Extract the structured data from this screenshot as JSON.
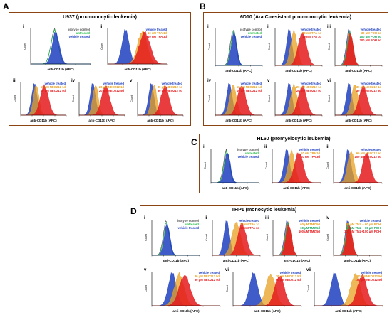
{
  "colors": {
    "box_border": "#8b4513",
    "isotype": "#555555",
    "untreated": "#22bb44",
    "vehicle": "#1f3fbf",
    "treat1": "#e8a020",
    "treat2": "#e41a1c",
    "treat3": "#1aa860"
  },
  "panels": {
    "A": {
      "letter": "A",
      "title": "U937 (pro-monocytic leukemia)",
      "plots": [
        {
          "roman": "i",
          "legend": [
            "isotype control",
            "untreated",
            "vehicle treated"
          ],
          "legend_colors": [
            "isotype",
            "untreated",
            "vehicle"
          ],
          "hists": [
            [
              "isotype",
              40,
              6
            ],
            [
              "untreated",
              40,
              6
            ],
            [
              "vehicle",
              42,
              6
            ]
          ],
          "xlabel": "anti-CD11b (APC)"
        },
        {
          "roman": "ii",
          "legend": [
            "vehicle treated",
            "10 nM TPA 1d",
            "10 nM TPA 3d"
          ],
          "legend_colors": [
            "vehicle",
            "treat1",
            "treat2"
          ],
          "hists": [
            [
              "vehicle",
              30,
              6
            ],
            [
              "treat1",
              58,
              8
            ],
            [
              "treat2",
              62,
              9
            ]
          ],
          "xlabel": "anti-CD11b (APC)"
        },
        {
          "roman": "iii",
          "legend": [
            "vehicle treated",
            "10 μM NEO212 1d",
            "10 μM NEO212 5d"
          ],
          "legend_colors": [
            "vehicle",
            "treat1",
            "treat2"
          ],
          "hists": [
            [
              "vehicle",
              30,
              6
            ],
            [
              "treat1",
              34,
              6
            ],
            [
              "treat2",
              52,
              9
            ]
          ],
          "xlabel": "anti-CD11b (APC)"
        },
        {
          "roman": "iv",
          "legend": [
            "vehicle treated",
            "20 μM NEO212 1d",
            "20 μM NEO212 5d"
          ],
          "legend_colors": [
            "vehicle",
            "treat1",
            "treat2"
          ],
          "hists": [
            [
              "vehicle",
              30,
              6
            ],
            [
              "treat1",
              36,
              6
            ],
            [
              "treat2",
              58,
              9
            ]
          ],
          "xlabel": "anti-CD11b (APC)"
        },
        {
          "roman": "v",
          "legend": [
            "vehicle treated",
            "30 μM NEO212 1d",
            "30 μM NEO212 5d"
          ],
          "legend_colors": [
            "vehicle",
            "treat1",
            "treat2"
          ],
          "hists": [
            [
              "vehicle",
              30,
              6
            ],
            [
              "treat1",
              36,
              6
            ],
            [
              "treat2",
              60,
              9
            ]
          ],
          "xlabel": "anti-CD11b (APC)"
        }
      ]
    },
    "B": {
      "letter": "B",
      "title": "6D10 (Ara C-resistant pro-monocytic leukemia)",
      "plots": [
        {
          "roman": "i",
          "legend": [
            "isotype control",
            "untreated",
            "vehicle treated"
          ],
          "legend_colors": [
            "isotype",
            "untreated",
            "vehicle"
          ],
          "hists": [
            [
              "isotype",
              38,
              6
            ],
            [
              "untreated",
              39,
              6
            ],
            [
              "vehicle",
              40,
              6
            ]
          ],
          "xlabel": "anti-CD11b (APC)"
        },
        {
          "roman": "ii",
          "legend": [
            "vehicle treated",
            "10 nM TPA 1d",
            "10 nM TPA 3d"
          ],
          "legend_colors": [
            "vehicle",
            "treat1",
            "treat2"
          ],
          "hists": [
            [
              "vehicle",
              30,
              6
            ],
            [
              "treat1",
              40,
              7
            ],
            [
              "treat2",
              58,
              9
            ]
          ],
          "xlabel": "anti-CD11b (APC)"
        },
        {
          "roman": "iii",
          "legend": [
            "vehicle treated",
            "30 μM POH 5d",
            "100 μM POH 5d",
            "300 μM POH 5d"
          ],
          "legend_colors": [
            "vehicle",
            "treat1",
            "treat3",
            "treat2"
          ],
          "hists": [
            [
              "vehicle",
              30,
              6
            ],
            [
              "treat1",
              31,
              6
            ],
            [
              "treat3",
              32,
              6
            ],
            [
              "treat2",
              33,
              6
            ]
          ],
          "xlabel": "anti-CD11b (APC)"
        },
        {
          "roman": "iv",
          "legend": [
            "vehicle treated",
            "10 μM NEO212 1d",
            "10 μM NEO212 5d"
          ],
          "legend_colors": [
            "vehicle",
            "treat1",
            "treat2"
          ],
          "hists": [
            [
              "vehicle",
              30,
              6
            ],
            [
              "treat1",
              38,
              7
            ],
            [
              "treat2",
              56,
              9
            ]
          ],
          "xlabel": "anti-CD11b (APC)"
        },
        {
          "roman": "v",
          "legend": [
            "vehicle treated",
            "20 μM NEO212 1d",
            "20 μM NEO212 5d"
          ],
          "legend_colors": [
            "vehicle",
            "treat1",
            "treat2"
          ],
          "hists": [
            [
              "vehicle",
              30,
              6
            ],
            [
              "treat1",
              40,
              7
            ],
            [
              "treat2",
              58,
              9
            ]
          ],
          "xlabel": "anti-CD11b (APC)"
        },
        {
          "roman": "vi",
          "legend": [
            "vehicle treated",
            "30 μM NEO212 1d",
            "30 μM NEO212 5d"
          ],
          "legend_colors": [
            "vehicle",
            "treat1",
            "treat2"
          ],
          "hists": [
            [
              "vehicle",
              30,
              6
            ],
            [
              "treat1",
              42,
              7
            ],
            [
              "treat2",
              60,
              9
            ]
          ],
          "xlabel": "anti-CD11b (APC)"
        }
      ]
    },
    "C": {
      "letter": "C",
      "title": "HL60 (promyelocytic leukemia)",
      "plots": [
        {
          "roman": "i",
          "legend": [
            "isotype control",
            "untreated",
            "vehicle treated"
          ],
          "legend_colors": [
            "isotype",
            "untreated",
            "vehicle"
          ],
          "hists": [
            [
              "isotype",
              32,
              6
            ],
            [
              "untreated",
              33,
              6
            ],
            [
              "vehicle",
              34,
              6
            ]
          ],
          "xlabel": "anti-CD11b (APC)"
        },
        {
          "roman": "ii",
          "legend": [
            "vehicle treated",
            "10 nM TPA 1d",
            "10 nM TPA 3d"
          ],
          "legend_colors": [
            "vehicle",
            "treat1",
            "treat2"
          ],
          "hists": [
            [
              "vehicle",
              30,
              6
            ],
            [
              "treat1",
              40,
              7
            ],
            [
              "treat2",
              55,
              9
            ]
          ],
          "xlabel": "anti-CD11b (APC)"
        },
        {
          "roman": "iii",
          "legend": [
            "vehicle treated",
            "60 μM NEO212 5d",
            "100 μM NEO212 5d"
          ],
          "legend_colors": [
            "vehicle",
            "treat1",
            "treat2"
          ],
          "hists": [
            [
              "vehicle",
              30,
              6
            ],
            [
              "treat1",
              36,
              7
            ],
            [
              "treat2",
              68,
              8
            ]
          ],
          "xlabel": "anti-CD11b (APC)"
        }
      ]
    },
    "D": {
      "letter": "D",
      "title": "THP1 (monocytic leukemia)",
      "plots": [
        {
          "roman": "i",
          "legend": [
            "isotype control",
            "untreated",
            "vehicle treated"
          ],
          "legend_colors": [
            "isotype",
            "untreated",
            "vehicle"
          ],
          "hists": [
            [
              "isotype",
              30,
              6
            ],
            [
              "untreated",
              31,
              6
            ],
            [
              "vehicle",
              32,
              6
            ]
          ],
          "xlabel": "anti-CD11b (APC)"
        },
        {
          "roman": "ii",
          "legend": [
            "vehicle treated",
            "10 nM TPA 1d",
            "10 nM TPA 3d"
          ],
          "legend_colors": [
            "vehicle",
            "treat1",
            "treat2"
          ],
          "hists": [
            [
              "vehicle",
              30,
              6
            ],
            [
              "treat1",
              50,
              9
            ],
            [
              "treat2",
              62,
              9
            ]
          ],
          "xlabel": "anti-CD11b (APC)"
        },
        {
          "roman": "iii",
          "legend": [
            "vehicle treated",
            "60 μM TMZ 5d",
            "60 μM TMZ 5d",
            "100 μM TMZ 5d"
          ],
          "legend_colors": [
            "vehicle",
            "treat1",
            "treat3",
            "treat2"
          ],
          "hists": [
            [
              "vehicle",
              30,
              6
            ],
            [
              "treat1",
              31,
              6
            ],
            [
              "treat3",
              32,
              6
            ],
            [
              "treat2",
              33,
              6
            ]
          ],
          "xlabel": "anti-CD11b (APC)"
        },
        {
          "roman": "iv",
          "legend": [
            "vehicle treated",
            "60 μM TMZ + 60 μM POH",
            "60 μM TMZ + 60 μM POH",
            "100 μM TMZ+100 μM POH"
          ],
          "legend_colors": [
            "vehicle",
            "treat1",
            "treat3",
            "treat2"
          ],
          "hists": [
            [
              "vehicle",
              30,
              6
            ],
            [
              "treat1",
              31,
              6
            ],
            [
              "treat3",
              32,
              6
            ],
            [
              "treat2",
              33,
              6
            ]
          ],
          "xlabel": "anti-CD11b (APC)"
        },
        {
          "roman": "v",
          "legend": [
            "vehicle treated",
            "30 μM NEO212 5d",
            "60 μM NEO212 5d"
          ],
          "legend_colors": [
            "vehicle",
            "treat1",
            "treat2"
          ],
          "hists": [
            [
              "vehicle",
              30,
              6
            ],
            [
              "treat1",
              40,
              7
            ],
            [
              "treat2",
              48,
              8
            ]
          ],
          "xlabel": "anti-CD11b (APC)"
        },
        {
          "roman": "vi",
          "legend": [
            "vehicle treated",
            "30 μM NEO212 5d",
            "60 μM NEO212 5d"
          ],
          "legend_colors": [
            "vehicle",
            "treat1",
            "treat2"
          ],
          "hists": [
            [
              "vehicle",
              30,
              6
            ],
            [
              "treat1",
              55,
              7
            ],
            [
              "treat2",
              68,
              7
            ]
          ],
          "xlabel": "anti-CD11b (APC)"
        },
        {
          "roman": "vii",
          "legend": [
            "vehicle treated",
            "100 μM NEO212 5d",
            "100 μM NEO212 5d"
          ],
          "legend_colors": [
            "vehicle",
            "treat1",
            "treat2"
          ],
          "hists": [
            [
              "vehicle",
              30,
              6
            ],
            [
              "treat1",
              60,
              7
            ],
            [
              "treat2",
              70,
              7
            ]
          ],
          "xlabel": "anti-CD11b (APC)"
        }
      ]
    }
  }
}
